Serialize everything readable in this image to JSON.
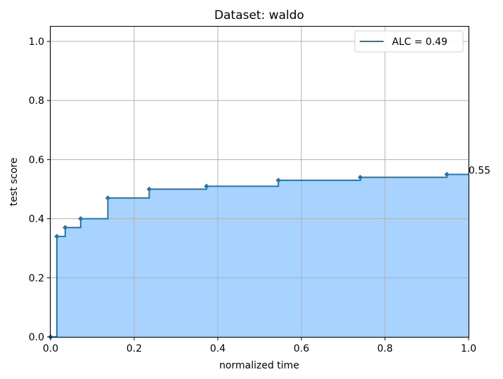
{
  "chart_data": {
    "type": "area",
    "title": "Dataset: waldo",
    "xlabel": "normalized time",
    "ylabel": "test score",
    "xlim": [
      0.0,
      1.0
    ],
    "ylim": [
      0.0,
      1.05
    ],
    "xticks": [
      "0.0",
      "0.2",
      "0.4",
      "0.6",
      "0.8",
      "1.0"
    ],
    "yticks": [
      "0.0",
      "0.2",
      "0.4",
      "0.6",
      "0.8",
      "1.0"
    ],
    "grid": true,
    "legend_position": "top-right",
    "series": [
      {
        "name": "ALC = 0.49",
        "step": "post",
        "x": [
          0.0,
          0.015,
          0.035,
          0.072,
          0.137,
          0.236,
          0.373,
          0.545,
          0.741,
          0.948,
          1.0
        ],
        "y": [
          0.0,
          0.34,
          0.37,
          0.4,
          0.47,
          0.5,
          0.51,
          0.53,
          0.54,
          0.55,
          0.55
        ],
        "markers_x": [
          0.0,
          0.015,
          0.035,
          0.072,
          0.137,
          0.236,
          0.373,
          0.545,
          0.741,
          0.948
        ],
        "markers_y": [
          0.0,
          0.34,
          0.37,
          0.4,
          0.47,
          0.5,
          0.51,
          0.53,
          0.54,
          0.55
        ]
      }
    ],
    "annotations": [
      {
        "text": "0.55",
        "x": 1.0,
        "y": 0.55
      }
    ],
    "colors": {
      "line": "#1f77b4",
      "fill": "#a8d3ff",
      "grid": "#b0b0b0",
      "axes": "#000000"
    }
  }
}
